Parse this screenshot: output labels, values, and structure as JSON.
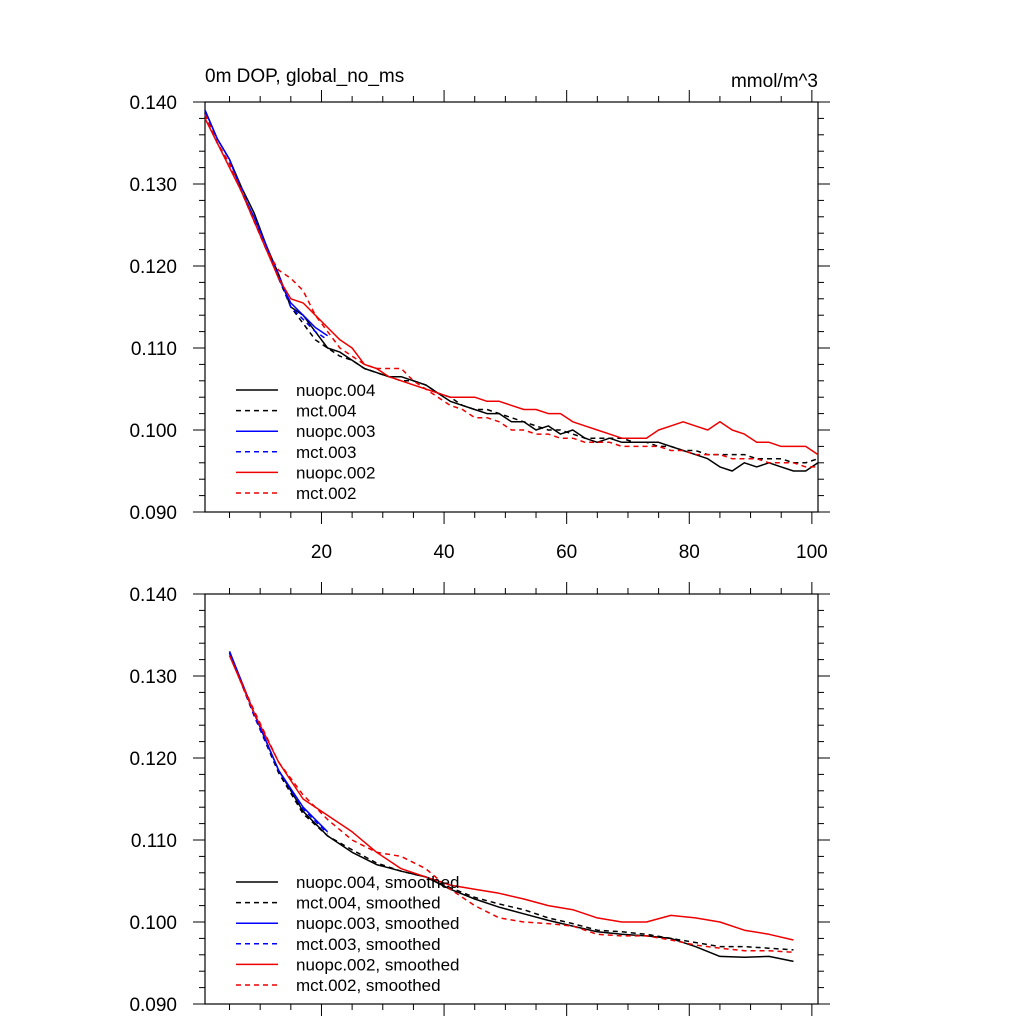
{
  "chart_data": [
    {
      "type": "line",
      "title": "0m DOP, global_no_ms",
      "units": "mmol/m^3",
      "xlabel": "",
      "ylabel": "",
      "xlim": [
        1,
        101
      ],
      "ylim": [
        0.09,
        0.14
      ],
      "x_ticks": [
        20,
        40,
        60,
        80,
        100
      ],
      "x_tick_labels": [
        "20",
        "40",
        "60",
        "80",
        "100"
      ],
      "y_ticks": [
        0.09,
        0.1,
        0.11,
        0.12,
        0.13,
        0.14
      ],
      "y_tick_labels": [
        "0.090",
        "0.100",
        "0.110",
        "0.120",
        "0.130",
        "0.140"
      ],
      "legend_position": "bottom-left",
      "series": [
        {
          "name": "nuopc.004",
          "color": "#000000",
          "dashed": false,
          "x": [
            1,
            3,
            5,
            7,
            9,
            11,
            13,
            15,
            17,
            19,
            21,
            23,
            25,
            27,
            29,
            31,
            33,
            35,
            37,
            39,
            41,
            43,
            45,
            47,
            49,
            51,
            53,
            55,
            57,
            59,
            61,
            63,
            65,
            67,
            69,
            71,
            73,
            75,
            77,
            79,
            81,
            83,
            85,
            87,
            89,
            91,
            93,
            95,
            97,
            99,
            101
          ],
          "values": [
            0.139,
            0.1355,
            0.133,
            0.1295,
            0.1265,
            0.1225,
            0.119,
            0.115,
            0.114,
            0.112,
            0.11,
            0.1095,
            0.1085,
            0.1075,
            0.107,
            0.1065,
            0.1065,
            0.106,
            0.1055,
            0.1045,
            0.1035,
            0.103,
            0.1025,
            0.102,
            0.102,
            0.101,
            0.101,
            0.1,
            0.1005,
            0.0995,
            0.1,
            0.099,
            0.0985,
            0.099,
            0.0985,
            0.0985,
            0.0985,
            0.0985,
            0.098,
            0.0975,
            0.097,
            0.0965,
            0.0955,
            0.095,
            0.096,
            0.0955,
            0.096,
            0.0955,
            0.095,
            0.095,
            0.096
          ]
        },
        {
          "name": "mct.004",
          "color": "#000000",
          "dashed": true,
          "x": [
            1,
            3,
            5,
            7,
            9,
            11,
            13,
            15,
            17,
            19,
            21,
            23,
            25,
            27,
            29,
            31,
            33,
            35,
            37,
            39,
            41,
            43,
            45,
            47,
            49,
            51,
            53,
            55,
            57,
            59,
            61,
            63,
            65,
            67,
            69,
            71,
            73,
            75,
            77,
            79,
            81,
            83,
            85,
            87,
            89,
            91,
            93,
            95,
            97,
            99,
            101
          ],
          "values": [
            0.1385,
            0.135,
            0.1325,
            0.129,
            0.1255,
            0.1225,
            0.1185,
            0.115,
            0.113,
            0.111,
            0.11,
            0.109,
            0.1085,
            0.1075,
            0.107,
            0.1065,
            0.106,
            0.106,
            0.1055,
            0.1045,
            0.104,
            0.103,
            0.1025,
            0.1025,
            0.102,
            0.1015,
            0.101,
            0.1005,
            0.1,
            0.1,
            0.0995,
            0.099,
            0.099,
            0.099,
            0.099,
            0.0985,
            0.0985,
            0.098,
            0.098,
            0.0975,
            0.0975,
            0.097,
            0.097,
            0.097,
            0.097,
            0.0965,
            0.0965,
            0.0965,
            0.096,
            0.096,
            0.0965
          ]
        },
        {
          "name": "nuopc.003",
          "color": "#0000ff",
          "dashed": false,
          "x": [
            1,
            3,
            5,
            7,
            9,
            11,
            13,
            15,
            17,
            19,
            21
          ],
          "values": [
            0.139,
            0.1355,
            0.133,
            0.129,
            0.126,
            0.1225,
            0.1185,
            0.1155,
            0.114,
            0.1125,
            0.1115
          ]
        },
        {
          "name": "mct.003",
          "color": "#0000ff",
          "dashed": true,
          "x": [
            1,
            3,
            5,
            7,
            9,
            11,
            13,
            15,
            17,
            19,
            21
          ],
          "values": [
            0.1385,
            0.135,
            0.1325,
            0.1295,
            0.1255,
            0.122,
            0.119,
            0.115,
            0.1135,
            0.112,
            0.111
          ]
        },
        {
          "name": "nuopc.002",
          "color": "#ee0000",
          "dashed": false,
          "x": [
            1,
            3,
            5,
            7,
            9,
            11,
            13,
            15,
            17,
            19,
            21,
            23,
            25,
            27,
            29,
            31,
            33,
            35,
            37,
            39,
            41,
            43,
            45,
            47,
            49,
            51,
            53,
            55,
            57,
            59,
            61,
            63,
            65,
            67,
            69,
            71,
            73,
            75,
            77,
            79,
            81,
            83,
            85,
            87,
            89,
            91,
            93,
            95,
            97,
            99,
            101
          ],
          "values": [
            0.138,
            0.135,
            0.132,
            0.129,
            0.1255,
            0.122,
            0.1185,
            0.116,
            0.1155,
            0.114,
            0.1125,
            0.111,
            0.11,
            0.108,
            0.1075,
            0.1065,
            0.106,
            0.1055,
            0.105,
            0.1045,
            0.104,
            0.104,
            0.104,
            0.1035,
            0.1035,
            0.103,
            0.1025,
            0.1025,
            0.102,
            0.102,
            0.101,
            0.1005,
            0.1,
            0.0995,
            0.099,
            0.099,
            0.099,
            0.1,
            0.1005,
            0.101,
            0.1005,
            0.1,
            0.101,
            0.1,
            0.0995,
            0.0985,
            0.0985,
            0.098,
            0.098,
            0.098,
            0.097
          ]
        },
        {
          "name": "mct.002",
          "color": "#ee0000",
          "dashed": true,
          "x": [
            1,
            3,
            5,
            7,
            9,
            11,
            13,
            15,
            17,
            19,
            21,
            23,
            25,
            27,
            29,
            31,
            33,
            35,
            37,
            39,
            41,
            43,
            45,
            47,
            49,
            51,
            53,
            55,
            57,
            59,
            61,
            63,
            65,
            67,
            69,
            71,
            73,
            75,
            77,
            79,
            81,
            83,
            85,
            87,
            89,
            91,
            93,
            95,
            97,
            99,
            101
          ],
          "values": [
            0.1385,
            0.135,
            0.1325,
            0.129,
            0.1255,
            0.122,
            0.1195,
            0.1185,
            0.117,
            0.114,
            0.112,
            0.11,
            0.109,
            0.108,
            0.1075,
            0.1075,
            0.1075,
            0.106,
            0.105,
            0.104,
            0.103,
            0.1025,
            0.1015,
            0.1015,
            0.101,
            0.1,
            0.1,
            0.0995,
            0.0995,
            0.099,
            0.099,
            0.0985,
            0.0985,
            0.0985,
            0.098,
            0.098,
            0.098,
            0.098,
            0.0975,
            0.0975,
            0.097,
            0.097,
            0.097,
            0.0965,
            0.0965,
            0.0965,
            0.096,
            0.096,
            0.096,
            0.0955,
            0.0955
          ]
        }
      ]
    },
    {
      "type": "line",
      "title": "",
      "units": "",
      "xlabel": "",
      "ylabel": "",
      "xlim": [
        1,
        101
      ],
      "ylim": [
        0.09,
        0.14
      ],
      "x_ticks": [
        20,
        40,
        60,
        80,
        100
      ],
      "x_tick_labels": [],
      "y_ticks": [
        0.09,
        0.1,
        0.11,
        0.12,
        0.13,
        0.14
      ],
      "y_tick_labels": [
        "0.090",
        "0.100",
        "0.110",
        "0.120",
        "0.130",
        "0.140"
      ],
      "legend_position": "bottom-left",
      "series": [
        {
          "name": "nuopc.004, smoothed",
          "color": "#000000",
          "dashed": false,
          "x": [
            5,
            9,
            13,
            17,
            21,
            25,
            29,
            33,
            37,
            41,
            45,
            49,
            53,
            57,
            61,
            65,
            69,
            73,
            77,
            81,
            85,
            89,
            93,
            97
          ],
          "values": [
            0.133,
            0.1255,
            0.1185,
            0.1135,
            0.1105,
            0.1085,
            0.107,
            0.1062,
            0.1055,
            0.104,
            0.1028,
            0.1018,
            0.101,
            0.1002,
            0.0995,
            0.0988,
            0.0985,
            0.0983,
            0.098,
            0.097,
            0.0958,
            0.0957,
            0.0958,
            0.0952
          ]
        },
        {
          "name": "mct.004, smoothed",
          "color": "#000000",
          "dashed": true,
          "x": [
            5,
            9,
            13,
            17,
            21,
            25,
            29,
            33,
            37,
            41,
            45,
            49,
            53,
            57,
            61,
            65,
            69,
            73,
            77,
            81,
            85,
            89,
            93,
            97
          ],
          "values": [
            0.1328,
            0.1252,
            0.1182,
            0.1132,
            0.1105,
            0.1088,
            0.1072,
            0.1062,
            0.1055,
            0.1042,
            0.103,
            0.1022,
            0.1015,
            0.1005,
            0.0998,
            0.099,
            0.0988,
            0.0985,
            0.098,
            0.0975,
            0.097,
            0.097,
            0.0968,
            0.0966
          ]
        },
        {
          "name": "nuopc.003, smoothed",
          "color": "#0000ff",
          "dashed": false,
          "x": [
            5,
            9,
            13,
            17,
            21
          ],
          "values": [
            0.133,
            0.1255,
            0.1185,
            0.114,
            0.111
          ]
        },
        {
          "name": "mct.003, smoothed",
          "color": "#0000ff",
          "dashed": true,
          "x": [
            5,
            9,
            13,
            17,
            21
          ],
          "values": [
            0.1328,
            0.1252,
            0.1185,
            0.1138,
            0.1108
          ]
        },
        {
          "name": "nuopc.002, smoothed",
          "color": "#ee0000",
          "dashed": false,
          "x": [
            5,
            9,
            13,
            17,
            21,
            25,
            29,
            33,
            37,
            41,
            45,
            49,
            53,
            57,
            61,
            65,
            69,
            73,
            77,
            81,
            85,
            89,
            93,
            97
          ],
          "values": [
            0.1325,
            0.1255,
            0.1195,
            0.115,
            0.113,
            0.111,
            0.1085,
            0.1065,
            0.1055,
            0.1045,
            0.104,
            0.1035,
            0.1028,
            0.102,
            0.1015,
            0.1005,
            0.1,
            0.1,
            0.1008,
            0.1005,
            0.1,
            0.099,
            0.0985,
            0.0978
          ]
        },
        {
          "name": "mct.002, smoothed",
          "color": "#ee0000",
          "dashed": true,
          "x": [
            5,
            9,
            13,
            17,
            21,
            25,
            29,
            33,
            37,
            41,
            45,
            49,
            53,
            57,
            61,
            65,
            69,
            73,
            77,
            81,
            85,
            89,
            93,
            97
          ],
          "values": [
            0.1325,
            0.1258,
            0.1195,
            0.1155,
            0.1125,
            0.11,
            0.1085,
            0.108,
            0.1065,
            0.104,
            0.102,
            0.1005,
            0.1,
            0.0998,
            0.0995,
            0.0985,
            0.0983,
            0.0983,
            0.0978,
            0.0972,
            0.0968,
            0.0965,
            0.0965,
            0.0963
          ]
        }
      ]
    }
  ]
}
